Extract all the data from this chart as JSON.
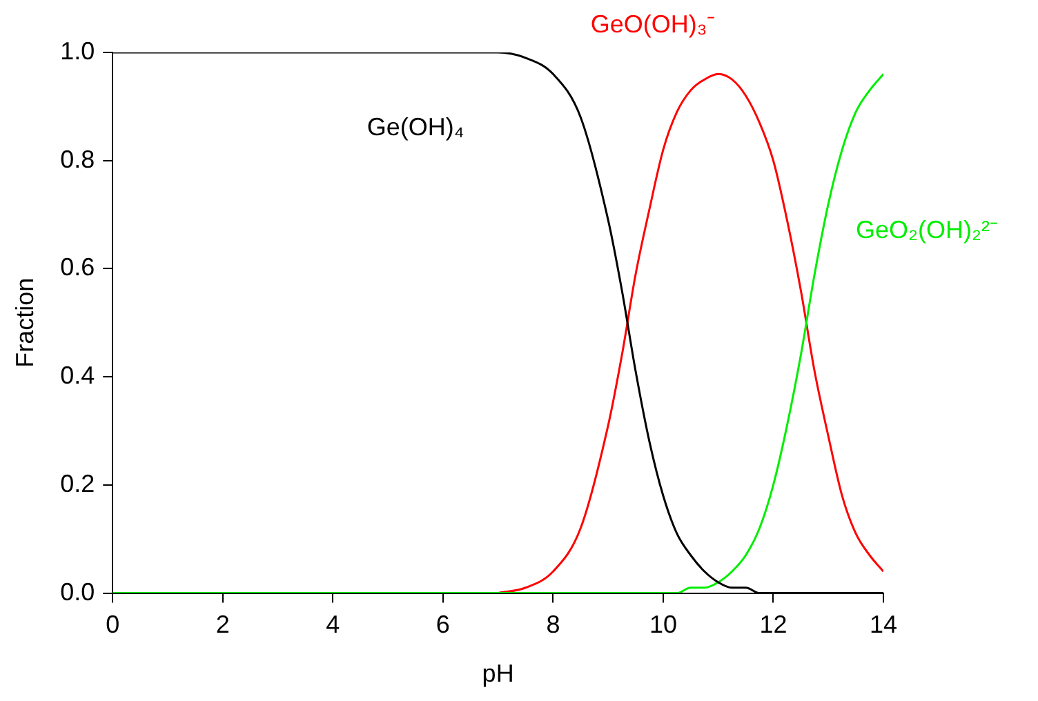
{
  "chart_data": {
    "type": "line",
    "xlabel": "pH",
    "ylabel": "Fraction",
    "x": [
      0,
      2,
      4,
      6,
      7,
      7.5,
      8,
      8.5,
      9,
      9.25,
      9.5,
      9.75,
      10,
      10.25,
      10.5,
      10.75,
      11,
      11.25,
      11.5,
      11.75,
      12,
      12.25,
      12.5,
      12.75,
      13,
      13.25,
      13.5,
      13.75,
      14
    ],
    "series": [
      {
        "name": "Ge(OH)₄",
        "color": "#000000",
        "values": [
          1,
          1,
          1,
          1,
          1,
          0.99,
          0.96,
          0.88,
          0.69,
          0.56,
          0.41,
          0.28,
          0.18,
          0.11,
          0.07,
          0.04,
          0.02,
          0.01,
          0.01,
          0,
          0,
          0,
          0,
          0,
          0,
          0,
          0,
          0,
          0
        ]
      },
      {
        "name": "GeO(OH)₃⁻",
        "color": "#ff0000",
        "values": [
          null,
          null,
          null,
          null,
          0,
          0.01,
          0.04,
          0.12,
          0.31,
          0.44,
          0.59,
          0.71,
          0.82,
          0.89,
          0.93,
          0.95,
          0.96,
          0.95,
          0.92,
          0.87,
          0.8,
          0.69,
          0.56,
          0.41,
          0.29,
          0.18,
          0.11,
          0.07,
          0.04
        ]
      },
      {
        "name": "GeO₂(OH)₂²⁻",
        "color": "#00ee00",
        "values": [
          0,
          0,
          0,
          0,
          0,
          0,
          0,
          0,
          0,
          0,
          0,
          0,
          0,
          0,
          0.01,
          0.01,
          0.02,
          0.04,
          0.07,
          0.12,
          0.2,
          0.31,
          0.44,
          0.59,
          0.72,
          0.82,
          0.89,
          0.93,
          0.96
        ]
      }
    ],
    "xlim": [
      0,
      14
    ],
    "xticks": [
      {
        "value": 0,
        "label": "0"
      },
      2,
      4,
      6,
      8,
      10,
      12,
      14
    ],
    "ylim": [
      0,
      1
    ],
    "yticks": [
      {
        "value": 0,
        "label": "0.0"
      },
      0.2,
      0.4,
      0.6,
      0.8,
      {
        "value": 1,
        "label": "1.0"
      }
    ],
    "grid": false,
    "legend": false,
    "marker": "none",
    "line_style": "solid"
  }
}
